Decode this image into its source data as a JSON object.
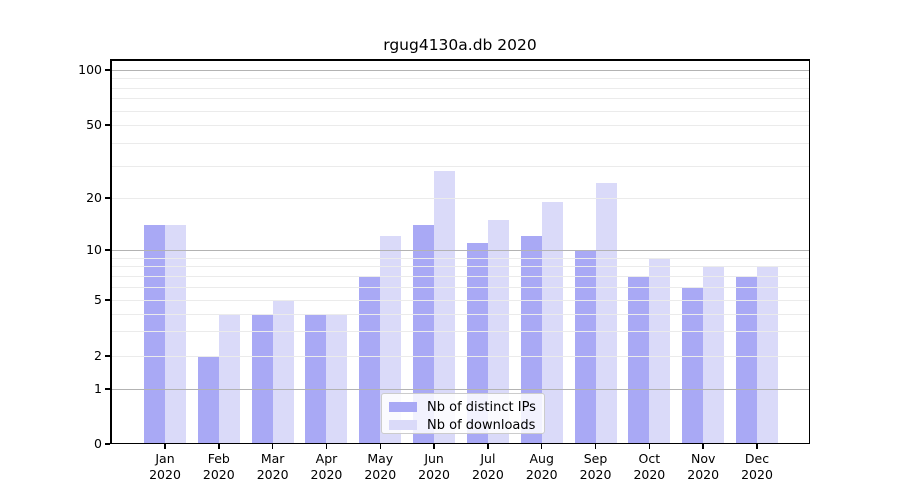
{
  "chart_data": {
    "type": "bar",
    "title": "rgug4130a.db 2020",
    "year": "2020",
    "categories": [
      "Jan",
      "Feb",
      "Mar",
      "Apr",
      "May",
      "Jun",
      "Jul",
      "Aug",
      "Sep",
      "Oct",
      "Nov",
      "Dec"
    ],
    "series": [
      {
        "name": "Nb of distinct IPs",
        "color": "#a9a9f5",
        "values": [
          14,
          2,
          4,
          4,
          7,
          14,
          11,
          12,
          10,
          7,
          6,
          7
        ]
      },
      {
        "name": "Nb of downloads",
        "color": "#dadaf9",
        "values": [
          14,
          4,
          5,
          4,
          12,
          28,
          15,
          19,
          24,
          9,
          8,
          8
        ]
      }
    ],
    "yticks": [
      0,
      1,
      2,
      5,
      10,
      20,
      50,
      100
    ],
    "ylim": [
      0,
      110
    ],
    "yscale": "quasi-log (linear 0-1, logarithmic above)",
    "grid": {
      "major": [
        1,
        10,
        100
      ],
      "minor": [
        2,
        3,
        4,
        5,
        6,
        7,
        8,
        9,
        20,
        30,
        40,
        50,
        60,
        70,
        80,
        90
      ],
      "major_color": "#b3b3b3",
      "minor_color": "#ebebeb"
    },
    "xlabel": "",
    "ylabel": "",
    "legend_position": "lower center inside plot"
  }
}
